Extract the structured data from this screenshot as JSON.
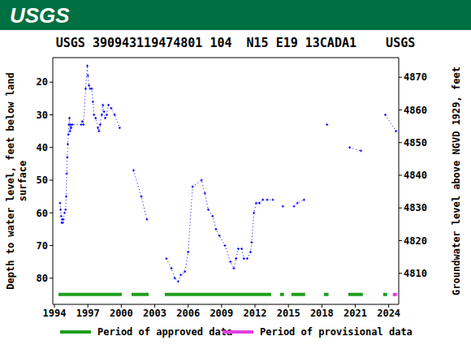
{
  "header": {
    "logo": "USGS"
  },
  "chart_data": {
    "type": "line",
    "title": "USGS 390943119474801 104  N15 E19 13CADA1    USGS",
    "ylabel": "Depth to water level, feet below land surface",
    "y2label": "Groundwater level above NGVD 1929, feet",
    "xlim": [
      1993.85,
      2024.9
    ],
    "xticks": [
      1994,
      1997,
      2000,
      2003,
      2006,
      2009,
      2012,
      2015,
      2018,
      2021,
      2024
    ],
    "ylim": [
      88,
      12.5
    ],
    "yticks": [
      20,
      30,
      40,
      50,
      60,
      70,
      80
    ],
    "y2lim": [
      4800.5,
      4876
    ],
    "y2ticks": [
      4810,
      4820,
      4830,
      4840,
      4850,
      4860,
      4870
    ],
    "x": [
      1994.5,
      1994.55,
      1994.6,
      1994.65,
      1994.7,
      1994.75,
      1994.8,
      1994.9,
      1995.0,
      1995.05,
      1995.1,
      1995.15,
      1995.2,
      1995.25,
      1995.3,
      1995.35,
      1995.4,
      1995.45,
      1995.5,
      1995.6,
      1996.4,
      1996.5,
      1996.6,
      1996.8,
      1996.95,
      1997.0,
      1997.1,
      1997.2,
      1997.35,
      1997.45,
      1997.55,
      1997.7,
      1997.9,
      1998.0,
      1998.1,
      1998.25,
      1998.35,
      1998.45,
      1998.55,
      1998.7,
      1998.85,
      1999.1,
      1999.4,
      1999.85,
      2000.5,
      2001.1,
      2001.8,
      2002.3,
      2003.2,
      2004.05,
      2004.5,
      2004.8,
      2005.1,
      2005.35,
      2005.7,
      2006.0,
      2006.4,
      2007.2,
      2007.5,
      2007.8,
      2008.2,
      2008.5,
      2008.8,
      2009.3,
      2009.8,
      2010.1,
      2010.3,
      2010.5,
      2010.8,
      2011.0,
      2011.3,
      2011.6,
      2011.7,
      2011.9,
      2012.1,
      2012.4,
      2012.7,
      2013.1,
      2013.6,
      2014.0,
      2014.5,
      2014.9,
      2015.5,
      2015.8,
      2016.4,
      2017.4,
      2018.47,
      2019.5,
      2020.5,
      2021.5,
      2022.6,
      2023.7,
      2024.65
    ],
    "series": [
      {
        "name": "Depth to water level",
        "type": "line",
        "color": "#0000ff",
        "line_style": "dotted",
        "marker": "plus",
        "values": [
          57,
          59,
          61,
          63,
          62,
          63,
          62,
          60,
          59,
          55,
          48,
          43,
          39,
          36,
          33,
          31,
          35,
          33,
          34,
          33,
          33,
          32,
          33,
          22,
          15,
          18,
          21,
          22,
          22,
          26,
          30,
          31,
          34,
          35,
          33,
          30,
          27,
          29,
          31,
          30,
          27,
          28,
          30,
          34,
          null,
          47,
          55,
          62,
          null,
          74,
          77,
          80,
          81,
          79,
          78,
          72,
          52,
          50,
          54,
          59,
          61,
          65,
          67,
          70,
          75,
          77,
          74,
          71,
          71,
          74,
          74,
          72,
          69,
          60,
          57,
          57,
          56,
          56,
          56,
          null,
          58,
          null,
          58,
          57,
          56,
          null,
          33,
          null,
          40,
          41,
          null,
          30,
          35
        ]
      },
      {
        "name": "Period of approved data",
        "type": "period",
        "color": "#1f9e1f",
        "ranges": [
          [
            1994.36,
            2000.05
          ],
          [
            2000.92,
            2002.45
          ],
          [
            2003.9,
            2013.45
          ],
          [
            2014.25,
            2014.6
          ],
          [
            2015.27,
            2016.5
          ],
          [
            2018.18,
            2018.6
          ],
          [
            2020.37,
            2021.68
          ],
          [
            2023.5,
            2023.86
          ]
        ]
      },
      {
        "name": "Period of provisional data",
        "type": "period",
        "color": "#e040e0",
        "ranges": [
          [
            2024.37,
            2024.73
          ]
        ]
      }
    ]
  }
}
